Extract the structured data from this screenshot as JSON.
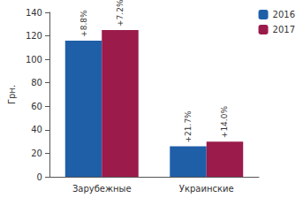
{
  "chart_data": {
    "type": "bar",
    "y_label": "Грн.",
    "categories": [
      "Зарубежные",
      "Украинские"
    ],
    "series": [
      {
        "name": "2016",
        "color": "#1f5fa8",
        "values": [
          116,
          26
        ],
        "annotations": [
          "+8.8%",
          "+21.7%"
        ]
      },
      {
        "name": "2017",
        "color": "#9b1b4b",
        "values": [
          125,
          30
        ],
        "annotations": [
          "+7.2%",
          "+14.0%"
        ]
      }
    ],
    "ylim": [
      0,
      140
    ],
    "yticks": [
      0,
      20,
      40,
      60,
      80,
      100,
      120,
      140
    ],
    "grid": false,
    "legend": "top-right"
  }
}
